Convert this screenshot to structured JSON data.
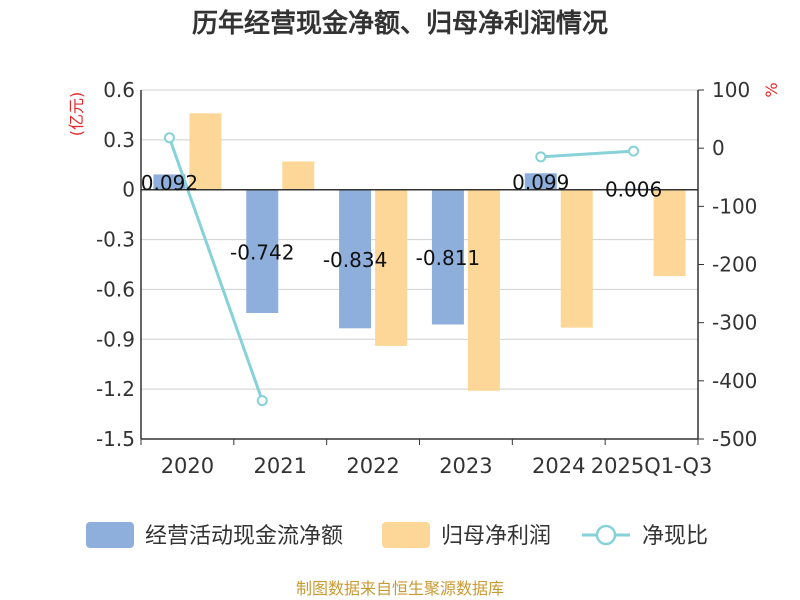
{
  "chart_data": {
    "type": "bar",
    "title": "历年经营现金净额、归母净利润情况",
    "categories": [
      "2020",
      "2021",
      "2022",
      "2023",
      "2024",
      "2025Q1-Q3"
    ],
    "left_axis": {
      "unit": "(亿元)",
      "ylim": [
        -1.5,
        0.6
      ],
      "ticks": [
        "0.6",
        "0.3",
        "0",
        "-0.3",
        "-0.6",
        "-0.9",
        "-1.2",
        "-1.5"
      ]
    },
    "right_axis": {
      "unit": "%",
      "ylim": [
        -500,
        100
      ],
      "ticks": [
        "100",
        "0",
        "-100",
        "-200",
        "-300",
        "-400",
        "-500"
      ]
    },
    "series": [
      {
        "name": "经营活动现金流净额",
        "type": "bar",
        "axis": "left",
        "color": "#8eaedb",
        "values": [
          0.092,
          -0.742,
          -0.834,
          -0.811,
          0.099,
          0.006
        ],
        "labels": [
          "0.092",
          "-0.742",
          "-0.834",
          "-0.811",
          "0.099",
          "0.006"
        ]
      },
      {
        "name": "归母净利润",
        "type": "bar",
        "axis": "left",
        "color": "#fdd797",
        "values": [
          0.46,
          0.17,
          -0.94,
          -1.21,
          -0.83,
          -0.52
        ]
      },
      {
        "name": "净现比",
        "type": "line",
        "axis": "right",
        "color": "#86d2d8",
        "values": [
          18,
          -434,
          null,
          null,
          -15,
          -5
        ]
      }
    ],
    "grid": true,
    "legend": "bottom"
  },
  "source": "制图数据来自恒生聚源数据库"
}
